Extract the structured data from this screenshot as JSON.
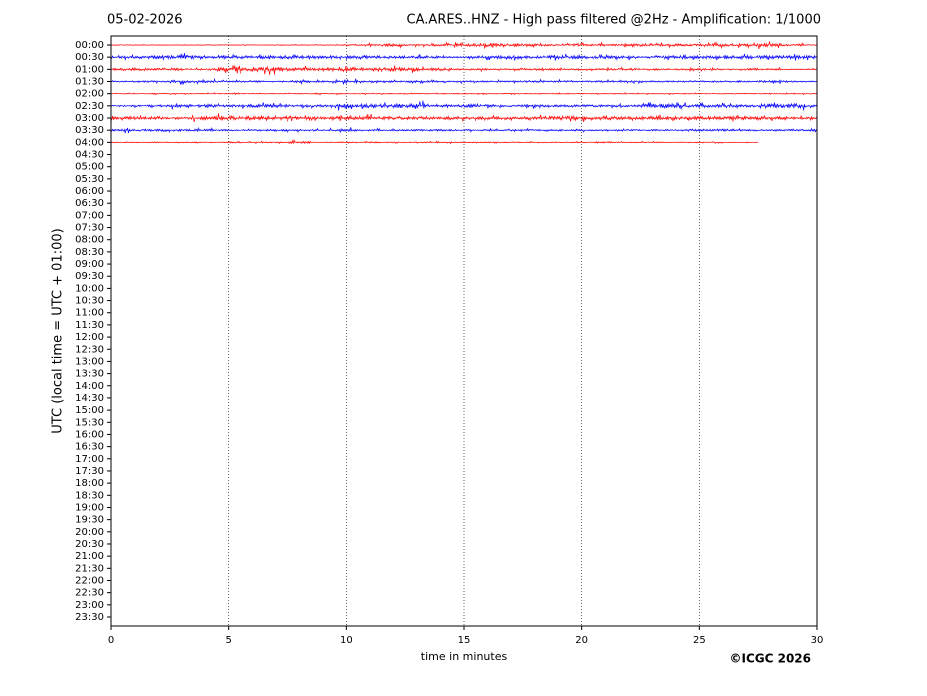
{
  "chart_data": {
    "type": "helicorder",
    "date": "05-02-2026",
    "title": "CA.ARES..HNZ - High pass filtered @2Hz - Amplification: 1/1000",
    "ylabel": "UTC (local time = UTC + 01:00)",
    "xlabel": "time in minutes",
    "footer": "©ICGC 2026",
    "xlim": [
      0,
      30
    ],
    "xticks": [
      0,
      5,
      10,
      15,
      20,
      25,
      30
    ],
    "grid": true,
    "categories": [
      "00:00",
      "00:30",
      "01:00",
      "01:30",
      "02:00",
      "02:30",
      "03:00",
      "03:30",
      "04:00",
      "04:30",
      "05:00",
      "05:30",
      "06:00",
      "06:30",
      "07:00",
      "07:30",
      "08:00",
      "08:30",
      "09:00",
      "09:30",
      "10:00",
      "10:30",
      "11:00",
      "11:30",
      "12:00",
      "12:30",
      "13:00",
      "13:30",
      "14:00",
      "14:30",
      "15:00",
      "15:30",
      "16:00",
      "16:30",
      "17:00",
      "17:30",
      "18:00",
      "18:30",
      "19:00",
      "19:30",
      "20:00",
      "20:30",
      "21:00",
      "21:30",
      "22:00",
      "22:30",
      "23:00",
      "23:30"
    ],
    "x": [
      0,
      1,
      2,
      3,
      4,
      5,
      6,
      7,
      8,
      9,
      10,
      11,
      12,
      13,
      14,
      15,
      16,
      17,
      18,
      19,
      20,
      21,
      22,
      23,
      24,
      25,
      26,
      27,
      28,
      29,
      30
    ],
    "traces": [
      {
        "color": "#ff0000",
        "values": [
          0.05,
          0.05,
          0.05,
          0.05,
          0.05,
          0.05,
          0.05,
          0.05,
          0.05,
          0.05,
          0.1,
          0.15,
          0.25,
          0.15,
          0.2,
          0.25,
          0.3,
          0.25,
          0.2,
          0.2,
          0.2,
          0.2,
          0.3,
          0.2,
          0.2,
          0.2,
          0.25,
          0.25,
          0.35,
          0.2,
          0.1
        ]
      },
      {
        "color": "#0000ff",
        "values": [
          0.2,
          0.2,
          0.3,
          0.35,
          0.25,
          0.3,
          0.3,
          0.3,
          0.3,
          0.3,
          0.3,
          0.3,
          0.25,
          0.25,
          0.2,
          0.15,
          0.3,
          0.35,
          0.25,
          0.3,
          0.3,
          0.3,
          0.25,
          0.25,
          0.3,
          0.3,
          0.35,
          0.3,
          0.3,
          0.3,
          0.3
        ]
      },
      {
        "color": "#ff0000",
        "values": [
          0.2,
          0.25,
          0.2,
          0.2,
          0.2,
          0.4,
          0.35,
          0.45,
          0.3,
          0.3,
          0.3,
          0.3,
          0.35,
          0.3,
          0.3,
          0.15,
          0.15,
          0.15,
          0.15,
          0.15,
          0.15,
          0.15,
          0.2,
          0.15,
          0.15,
          0.15,
          0.15,
          0.2,
          0.15,
          0.1,
          0.1
        ]
      },
      {
        "color": "#0000ff",
        "values": [
          0.1,
          0.15,
          0.15,
          0.25,
          0.2,
          0.15,
          0.15,
          0.15,
          0.2,
          0.15,
          0.25,
          0.15,
          0.15,
          0.2,
          0.15,
          0.15,
          0.15,
          0.15,
          0.2,
          0.15,
          0.15,
          0.15,
          0.15,
          0.15,
          0.15,
          0.15,
          0.15,
          0.15,
          0.2,
          0.15,
          0.1
        ]
      },
      {
        "color": "#ff0000",
        "values": [
          0.08,
          0.08,
          0.08,
          0.08,
          0.08,
          0.08,
          0.08,
          0.08,
          0.08,
          0.1,
          0.08,
          0.08,
          0.08,
          0.08,
          0.08,
          0.08,
          0.08,
          0.08,
          0.1,
          0.1,
          0.08,
          0.08,
          0.08,
          0.08,
          0.08,
          0.08,
          0.08,
          0.08,
          0.08,
          0.08,
          0.08
        ]
      },
      {
        "color": "#0000ff",
        "values": [
          0.1,
          0.15,
          0.2,
          0.3,
          0.3,
          0.25,
          0.3,
          0.3,
          0.25,
          0.2,
          0.4,
          0.35,
          0.4,
          0.45,
          0.3,
          0.25,
          0.25,
          0.2,
          0.2,
          0.2,
          0.2,
          0.2,
          0.2,
          0.35,
          0.4,
          0.3,
          0.25,
          0.25,
          0.4,
          0.4,
          0.2
        ]
      },
      {
        "color": "#ff0000",
        "values": [
          0.25,
          0.3,
          0.3,
          0.25,
          0.35,
          0.4,
          0.35,
          0.35,
          0.3,
          0.25,
          0.3,
          0.35,
          0.3,
          0.3,
          0.3,
          0.25,
          0.25,
          0.3,
          0.3,
          0.35,
          0.4,
          0.35,
          0.3,
          0.35,
          0.3,
          0.3,
          0.3,
          0.3,
          0.3,
          0.25,
          0.25
        ]
      },
      {
        "color": "#0000ff",
        "values": [
          0.2,
          0.25,
          0.2,
          0.2,
          0.2,
          0.15,
          0.15,
          0.2,
          0.15,
          0.15,
          0.25,
          0.15,
          0.15,
          0.15,
          0.15,
          0.15,
          0.15,
          0.15,
          0.15,
          0.15,
          0.15,
          0.15,
          0.15,
          0.15,
          0.15,
          0.2,
          0.2,
          0.15,
          0.15,
          0.15,
          0.15
        ]
      },
      {
        "color": "#ff0000",
        "values": [
          0.08,
          0.08,
          0.1,
          0.08,
          0.08,
          0.1,
          0.1,
          0.1,
          0.2,
          0.08,
          0.1,
          0.1,
          0.08,
          0.1,
          0.1,
          0.08,
          0.08,
          0.08,
          0.08,
          0.08,
          0.08,
          0.15,
          0.08,
          0.08,
          0.08,
          0.08,
          0.08,
          0.05,
          null,
          null,
          null
        ]
      }
    ]
  }
}
